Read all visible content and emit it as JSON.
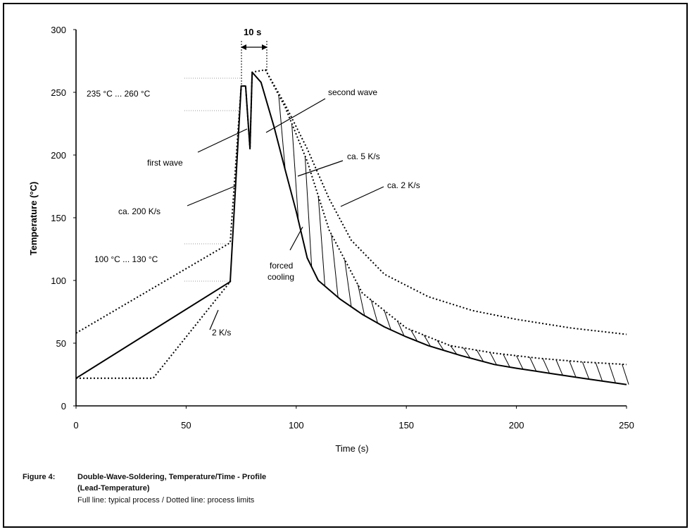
{
  "chart_data": {
    "type": "line",
    "xlabel": "Time (s)",
    "ylabel": "Temperature (°C)",
    "xlim": [
      0,
      250
    ],
    "ylim": [
      0,
      300
    ],
    "xticks": [
      0,
      50,
      100,
      150,
      200,
      250
    ],
    "yticks": [
      0,
      50,
      100,
      150,
      200,
      250,
      300
    ],
    "grid": false,
    "series": [
      {
        "style": "solid",
        "x": [
          0,
          70,
          75,
          77,
          79,
          80,
          84,
          90,
          95,
          100,
          105,
          110,
          120,
          130,
          140,
          150,
          160,
          175,
          190,
          200,
          215,
          230,
          250
        ],
        "y": [
          22,
          99,
          255,
          255,
          205,
          266,
          258,
          222,
          188,
          155,
          118,
          100,
          85,
          73,
          63,
          55,
          48,
          40,
          33,
          30,
          26,
          22,
          17
        ]
      },
      {
        "style": "dotted",
        "x": [
          0,
          70,
          75,
          77,
          79,
          80,
          86,
          95,
          105,
          115,
          130,
          150,
          170,
          190,
          210,
          230,
          250
        ],
        "y": [
          58,
          130,
          255,
          255,
          205,
          266,
          268,
          238,
          195,
          140,
          90,
          62,
          48,
          42,
          38,
          35,
          33
        ]
      },
      {
        "style": "dotted",
        "x": [
          0,
          35,
          70
        ],
        "y": [
          22,
          22,
          99
        ]
      },
      {
        "style": "dotted",
        "x": [
          86,
          95,
          105,
          115,
          125,
          140,
          160,
          180,
          200,
          225,
          250
        ],
        "y": [
          268,
          240,
          205,
          165,
          132,
          105,
          87,
          76,
          69,
          62,
          57
        ]
      }
    ],
    "annotations": {
      "interval": "10 s",
      "range_high": "235 °C ... 260 °C",
      "range_low": "100 °C ... 130 °C",
      "second_wave": "second wave",
      "first_wave": "first wave",
      "rate_5": "ca. 5 K/s",
      "rate_2": "ca. 2 K/s",
      "rate_200": "ca. 200 K/s",
      "forced_cooling": [
        "forced",
        "cooling"
      ],
      "preheat_rate": "2 K/s"
    }
  },
  "caption": {
    "figure_label": "Figure 4:",
    "title": "Double-Wave-Soldering, Temperature/Time - Profile",
    "subtitle": "(Lead-Temperature)",
    "note": "Full line: typical process / Dotted line: process limits"
  }
}
